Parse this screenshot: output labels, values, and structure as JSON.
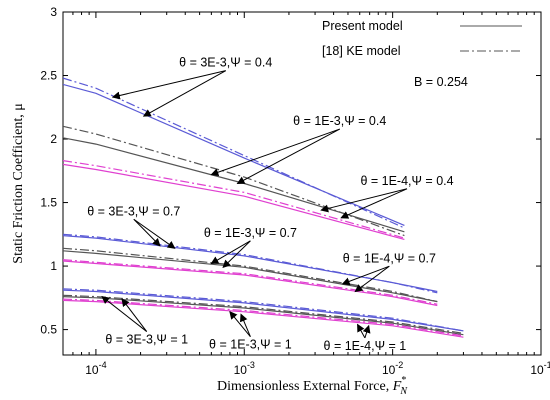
{
  "chart_data": {
    "type": "line",
    "x_scale": "log",
    "xlim": [
      6e-05,
      0.1
    ],
    "ylim": [
      0.3,
      3
    ],
    "x_ticks": [
      0.0001,
      0.001,
      0.01,
      0.1
    ],
    "x_tick_labels": [
      {
        "base": "10",
        "exp": "-4"
      },
      {
        "base": "10",
        "exp": "-3"
      },
      {
        "base": "10",
        "exp": "-2"
      },
      {
        "base": "10",
        "exp": "-1"
      }
    ],
    "y_ticks": [
      0.5,
      1,
      1.5,
      2,
      2.5,
      3
    ],
    "y_tick_labels": [
      "0.5",
      "1",
      "1.5",
      "2",
      "2.5",
      "3"
    ],
    "xlabel": {
      "text": "Dimensionless External Force, ",
      "var": "F",
      "sup": "*",
      "sub": "N"
    },
    "ylabel": "Static Friction Coefficient, μ",
    "legend": {
      "placement": "top-right",
      "entries": [
        {
          "label": "Present model",
          "style": "solid"
        },
        {
          "label": "[18] KE model",
          "style": "dashdot"
        }
      ],
      "note": "B = 0.254"
    },
    "series": [
      {
        "model": "present",
        "theta": "3E-3",
        "psi": "0.4",
        "color": "#5b5bd6",
        "x": [
          6e-05,
          0.0001,
          0.001,
          0.012
        ],
        "y": [
          2.43,
          2.36,
          1.85,
          1.32
        ]
      },
      {
        "model": "ke",
        "theta": "3E-3",
        "psi": "0.4",
        "color": "#5b5bd6",
        "x": [
          6e-05,
          0.0001,
          0.001,
          0.012
        ],
        "y": [
          2.48,
          2.4,
          1.87,
          1.3
        ]
      },
      {
        "model": "present",
        "theta": "1E-3",
        "psi": "0.4",
        "color": "#555555",
        "x": [
          6e-05,
          0.0001,
          0.001,
          0.012
        ],
        "y": [
          2.01,
          1.96,
          1.65,
          1.27
        ]
      },
      {
        "model": "ke",
        "theta": "1E-3",
        "psi": "0.4",
        "color": "#555555",
        "x": [
          6e-05,
          0.0001,
          0.001,
          0.012
        ],
        "y": [
          2.1,
          2.04,
          1.7,
          1.24
        ]
      },
      {
        "model": "present",
        "theta": "1E-4",
        "psi": "0.4",
        "color": "#e040d0",
        "x": [
          6e-05,
          0.0001,
          0.001,
          0.012
        ],
        "y": [
          1.8,
          1.76,
          1.55,
          1.21
        ]
      },
      {
        "model": "ke",
        "theta": "1E-4",
        "psi": "0.4",
        "color": "#e040d0",
        "x": [
          6e-05,
          0.0001,
          0.001,
          0.012
        ],
        "y": [
          1.83,
          1.79,
          1.58,
          1.22
        ]
      },
      {
        "model": "present",
        "theta": "3E-3",
        "psi": "0.7",
        "color": "#5b5bd6",
        "x": [
          6e-05,
          0.0001,
          0.001,
          0.01,
          0.02
        ],
        "y": [
          1.24,
          1.22,
          1.08,
          0.87,
          0.8
        ]
      },
      {
        "model": "ke",
        "theta": "3E-3",
        "psi": "0.7",
        "color": "#5b5bd6",
        "x": [
          6e-05,
          0.0001,
          0.001,
          0.01,
          0.02
        ],
        "y": [
          1.25,
          1.23,
          1.09,
          0.87,
          0.79
        ]
      },
      {
        "model": "present",
        "theta": "1E-3",
        "psi": "0.7",
        "color": "#555555",
        "x": [
          6e-05,
          0.0001,
          0.001,
          0.01,
          0.02
        ],
        "y": [
          1.12,
          1.1,
          0.99,
          0.79,
          0.72
        ]
      },
      {
        "model": "ke",
        "theta": "1E-3",
        "psi": "0.7",
        "color": "#555555",
        "x": [
          6e-05,
          0.0001,
          0.001,
          0.01,
          0.02
        ],
        "y": [
          1.14,
          1.12,
          1.0,
          0.8,
          0.72
        ]
      },
      {
        "model": "present",
        "theta": "1E-4",
        "psi": "0.7",
        "color": "#e040d0",
        "x": [
          6e-05,
          0.0001,
          0.001,
          0.01,
          0.02
        ],
        "y": [
          1.04,
          1.02,
          0.93,
          0.76,
          0.69
        ]
      },
      {
        "model": "ke",
        "theta": "1E-4",
        "psi": "0.7",
        "color": "#e040d0",
        "x": [
          6e-05,
          0.0001,
          0.001,
          0.01,
          0.02
        ],
        "y": [
          1.05,
          1.03,
          0.94,
          0.77,
          0.7
        ]
      },
      {
        "model": "present",
        "theta": "3E-3",
        "psi": "1",
        "color": "#5b5bd6",
        "x": [
          6e-05,
          0.0001,
          0.001,
          0.01,
          0.03
        ],
        "y": [
          0.81,
          0.8,
          0.71,
          0.58,
          0.49
        ]
      },
      {
        "model": "ke",
        "theta": "3E-3",
        "psi": "1",
        "color": "#5b5bd6",
        "x": [
          6e-05,
          0.0001,
          0.001,
          0.01,
          0.03
        ],
        "y": [
          0.82,
          0.81,
          0.72,
          0.59,
          0.49
        ]
      },
      {
        "model": "present",
        "theta": "1E-3",
        "psi": "1",
        "color": "#555555",
        "x": [
          6e-05,
          0.0001,
          0.001,
          0.01,
          0.03
        ],
        "y": [
          0.76,
          0.75,
          0.67,
          0.55,
          0.46
        ]
      },
      {
        "model": "ke",
        "theta": "1E-3",
        "psi": "1",
        "color": "#555555",
        "x": [
          6e-05,
          0.0001,
          0.001,
          0.01,
          0.03
        ],
        "y": [
          0.77,
          0.76,
          0.68,
          0.56,
          0.47
        ]
      },
      {
        "model": "present",
        "theta": "1E-4",
        "psi": "1",
        "color": "#e040d0",
        "x": [
          6e-05,
          0.0001,
          0.001,
          0.01,
          0.03
        ],
        "y": [
          0.73,
          0.72,
          0.64,
          0.53,
          0.44
        ]
      },
      {
        "model": "ke",
        "theta": "1E-4",
        "psi": "1",
        "color": "#e040d0",
        "x": [
          6e-05,
          0.0001,
          0.001,
          0.01,
          0.03
        ],
        "y": [
          0.74,
          0.73,
          0.65,
          0.54,
          0.45
        ]
      }
    ],
    "annotations": [
      {
        "label": "θ = 3E-3,Ψ = 0.4",
        "x": 0.00075,
        "y": 2.57,
        "pointers": [
          [
            0.00013,
            2.33
          ],
          [
            0.00021,
            2.18
          ]
        ]
      },
      {
        "label": "θ = 1E-3,Ψ = 0.4",
        "x": 0.0044,
        "y": 2.11,
        "pointers": [
          [
            0.0006,
            1.72
          ],
          [
            0.0009,
            1.65
          ]
        ]
      },
      {
        "label": "θ = 1E-4,Ψ = 0.4",
        "x": 0.0125,
        "y": 1.64,
        "pointers": [
          [
            0.0033,
            1.44
          ],
          [
            0.0045,
            1.38
          ]
        ]
      },
      {
        "label": "θ = 3E-3,Ψ = 0.7",
        "x": 0.00018,
        "y": 1.4,
        "pointers": [
          [
            0.00027,
            1.16
          ],
          [
            0.00034,
            1.14
          ]
        ]
      },
      {
        "label": "θ = 1E-3,Ψ = 0.7",
        "x": 0.0011,
        "y": 1.23,
        "pointers": [
          [
            0.0006,
            1.02
          ],
          [
            0.00072,
            0.99
          ]
        ]
      },
      {
        "label": "θ = 1E-4,Ψ = 0.7",
        "x": 0.0095,
        "y": 1.03,
        "pointers": [
          [
            0.0046,
            0.86
          ],
          [
            0.0056,
            0.8
          ]
        ]
      },
      {
        "label": "θ = 3E-3,Ψ = 1",
        "x": 0.00022,
        "y": 0.39,
        "pointers": [
          [
            0.00011,
            0.76
          ],
          [
            0.00015,
            0.74
          ]
        ]
      },
      {
        "label": "θ = 1E-3,Ψ = 1",
        "x": 0.0011,
        "y": 0.35,
        "pointers": [
          [
            0.0008,
            0.64
          ],
          [
            0.00095,
            0.62
          ]
        ]
      },
      {
        "label": "θ = 1E-4,Ψ = 1",
        "x": 0.0065,
        "y": 0.34,
        "pointers": [
          [
            0.0058,
            0.54
          ],
          [
            0.0069,
            0.53
          ]
        ]
      }
    ]
  }
}
